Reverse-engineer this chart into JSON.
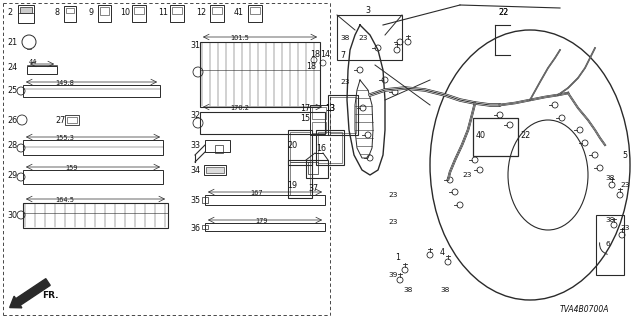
{
  "bg_color": "#ffffff",
  "line_color": "#2a2a2a",
  "text_color": "#111111",
  "fig_width": 6.4,
  "fig_height": 3.2,
  "dpi": 100,
  "diagram_code": "TVA4B0700A"
}
